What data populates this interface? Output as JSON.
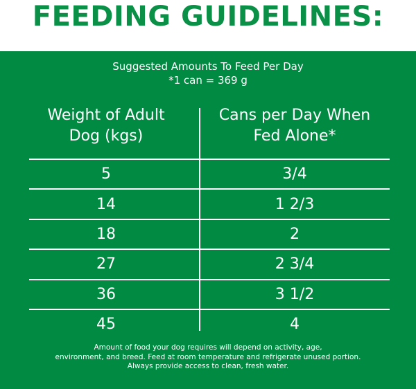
{
  "title": "FEEDING GUIDELINES:",
  "subtitle": {
    "line1": "Suggested Amounts To Feed Per Day",
    "line2": "*1 can = 369 g"
  },
  "table": {
    "headers": {
      "weight_line1": "Weight of Adult",
      "weight_line2": "Dog (kgs)",
      "cans_line1": "Cans per Day When",
      "cans_line2": "Fed Alone*"
    },
    "rows": [
      {
        "weight": "5",
        "cans": "3/4"
      },
      {
        "weight": "14",
        "cans": "1 2/3"
      },
      {
        "weight": "18",
        "cans": "2"
      },
      {
        "weight": "27",
        "cans": "2 3/4"
      },
      {
        "weight": "36",
        "cans": "3 1/2"
      },
      {
        "weight": "45",
        "cans": "4"
      }
    ]
  },
  "footnote": {
    "line1": "Amount of food your dog requires will depend on activity, age,",
    "line2": "environment, and breed. Feed at room temperature and refrigerate unused portion.",
    "line3": "Always provide access to clean, fresh water."
  },
  "colors": {
    "title_green": "#0a9147",
    "panel_green": "#008a42",
    "text_white": "#ffffff"
  }
}
